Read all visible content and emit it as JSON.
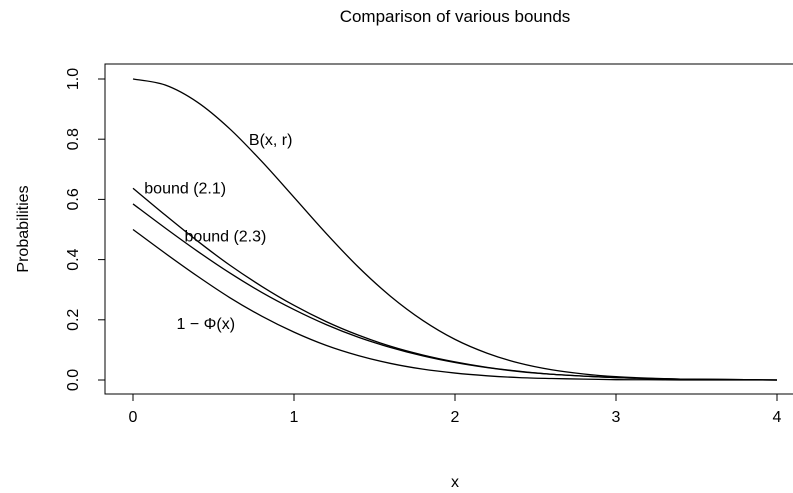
{
  "chart_data": {
    "type": "line",
    "title": "Comparison of various bounds",
    "xlabel": "x",
    "ylabel": "Probabilities",
    "xlim": [
      0,
      4
    ],
    "ylim": [
      0,
      1
    ],
    "xticks": [
      0,
      1,
      2,
      3,
      4
    ],
    "xtick_labels": [
      "0",
      "1",
      "2",
      "3",
      "4"
    ],
    "yticks": [
      0,
      0.2,
      0.4,
      0.6,
      0.8,
      1
    ],
    "ytick_labels": [
      "0.0",
      "0.2",
      "0.4",
      "0.6",
      "0.8",
      "1.0"
    ],
    "grid": false,
    "legend": "none",
    "series": [
      {
        "name": "B(x, r)",
        "label_pos": [
          0.72,
          0.8
        ],
        "x": [
          0,
          0.2,
          0.4,
          0.6,
          0.8,
          1.0,
          1.2,
          1.4,
          1.6,
          1.8,
          2.0,
          2.2,
          2.4,
          2.6,
          2.8,
          3.0,
          3.2,
          3.4,
          3.6,
          3.8,
          4.0
        ],
        "y": [
          1.0,
          0.98,
          0.923,
          0.835,
          0.726,
          0.607,
          0.487,
          0.375,
          0.278,
          0.198,
          0.135,
          0.089,
          0.056,
          0.034,
          0.02,
          0.011,
          0.006,
          0.003,
          0.002,
          0.001,
          0.0
        ]
      },
      {
        "name": "bound (2.1)",
        "label_pos": [
          0.07,
          0.64
        ],
        "x": [
          0,
          0.2,
          0.4,
          0.6,
          0.8,
          1.0,
          1.2,
          1.4,
          1.6,
          1.8,
          2.0,
          2.2,
          2.4,
          2.6,
          2.8,
          3.0,
          3.2,
          3.4,
          3.6,
          3.8,
          4.0
        ],
        "y": [
          0.637,
          0.548,
          0.462,
          0.382,
          0.311,
          0.248,
          0.194,
          0.149,
          0.112,
          0.083,
          0.06,
          0.042,
          0.029,
          0.019,
          0.013,
          0.008,
          0.005,
          0.003,
          0.002,
          0.001,
          0.0
        ]
      },
      {
        "name": "bound (2.3)",
        "label_pos": [
          0.32,
          0.48
        ],
        "x": [
          0,
          0.2,
          0.4,
          0.6,
          0.8,
          1.0,
          1.2,
          1.4,
          1.6,
          1.8,
          2.0,
          2.2,
          2.4,
          2.6,
          2.8,
          3.0,
          3.2,
          3.4,
          3.6,
          3.8,
          4.0
        ],
        "y": [
          0.585,
          0.505,
          0.428,
          0.356,
          0.291,
          0.234,
          0.184,
          0.142,
          0.108,
          0.08,
          0.058,
          0.041,
          0.028,
          0.019,
          0.013,
          0.008,
          0.005,
          0.003,
          0.002,
          0.001,
          0.0
        ]
      },
      {
        "name": "1 − Φ(x)",
        "label_pos": [
          0.27,
          0.19
        ],
        "x": [
          0,
          0.2,
          0.4,
          0.6,
          0.8,
          1.0,
          1.2,
          1.4,
          1.6,
          1.8,
          2.0,
          2.2,
          2.4,
          2.6,
          2.8,
          3.0,
          3.2,
          3.4,
          3.6,
          3.8,
          4.0
        ],
        "y": [
          0.5,
          0.421,
          0.345,
          0.274,
          0.212,
          0.159,
          0.115,
          0.081,
          0.055,
          0.036,
          0.023,
          0.014,
          0.008,
          0.005,
          0.003,
          0.001,
          0.001,
          0.0,
          0.0,
          0.0,
          0.0
        ]
      }
    ]
  }
}
